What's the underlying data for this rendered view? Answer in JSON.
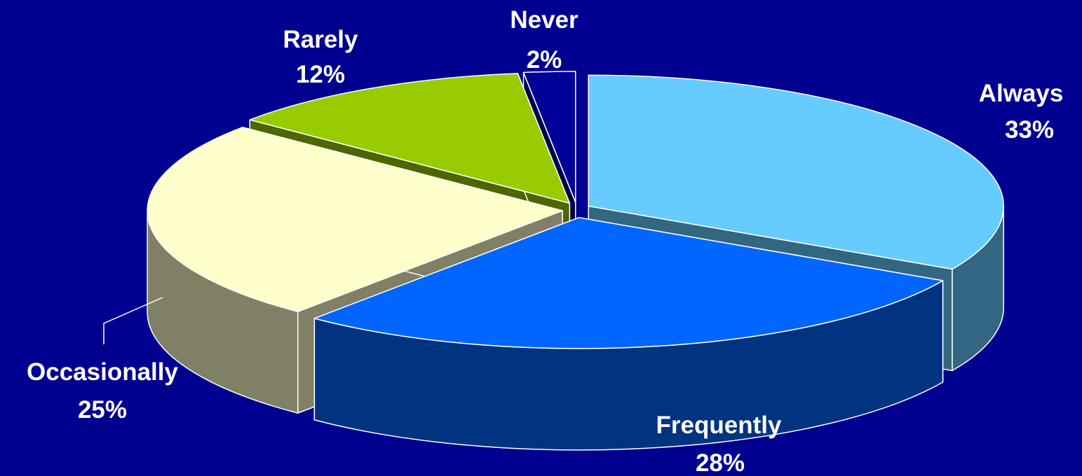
{
  "chart_data": {
    "type": "pie",
    "title": "",
    "slices": [
      {
        "label": "Always",
        "value": 33,
        "value_label": "33%",
        "top_color": "#66ccff",
        "side_color": "#336680"
      },
      {
        "label": "Frequently",
        "value": 28,
        "value_label": "28%",
        "top_color": "#0066ff",
        "side_color": "#003380"
      },
      {
        "label": "Occasionally",
        "value": 25,
        "value_label": "25%",
        "top_color": "#ffffcc",
        "side_color": "#808066"
      },
      {
        "label": "Rarely",
        "value": 12,
        "value_label": "12%",
        "top_color": "#99cc00",
        "side_color": "#4d6600"
      },
      {
        "label": "Never",
        "value": 2,
        "value_label": "2%",
        "top_color": "#000099",
        "side_color": "#00004d"
      }
    ],
    "style": "3d-exploded",
    "legend": "none",
    "background_color": "#000090"
  }
}
